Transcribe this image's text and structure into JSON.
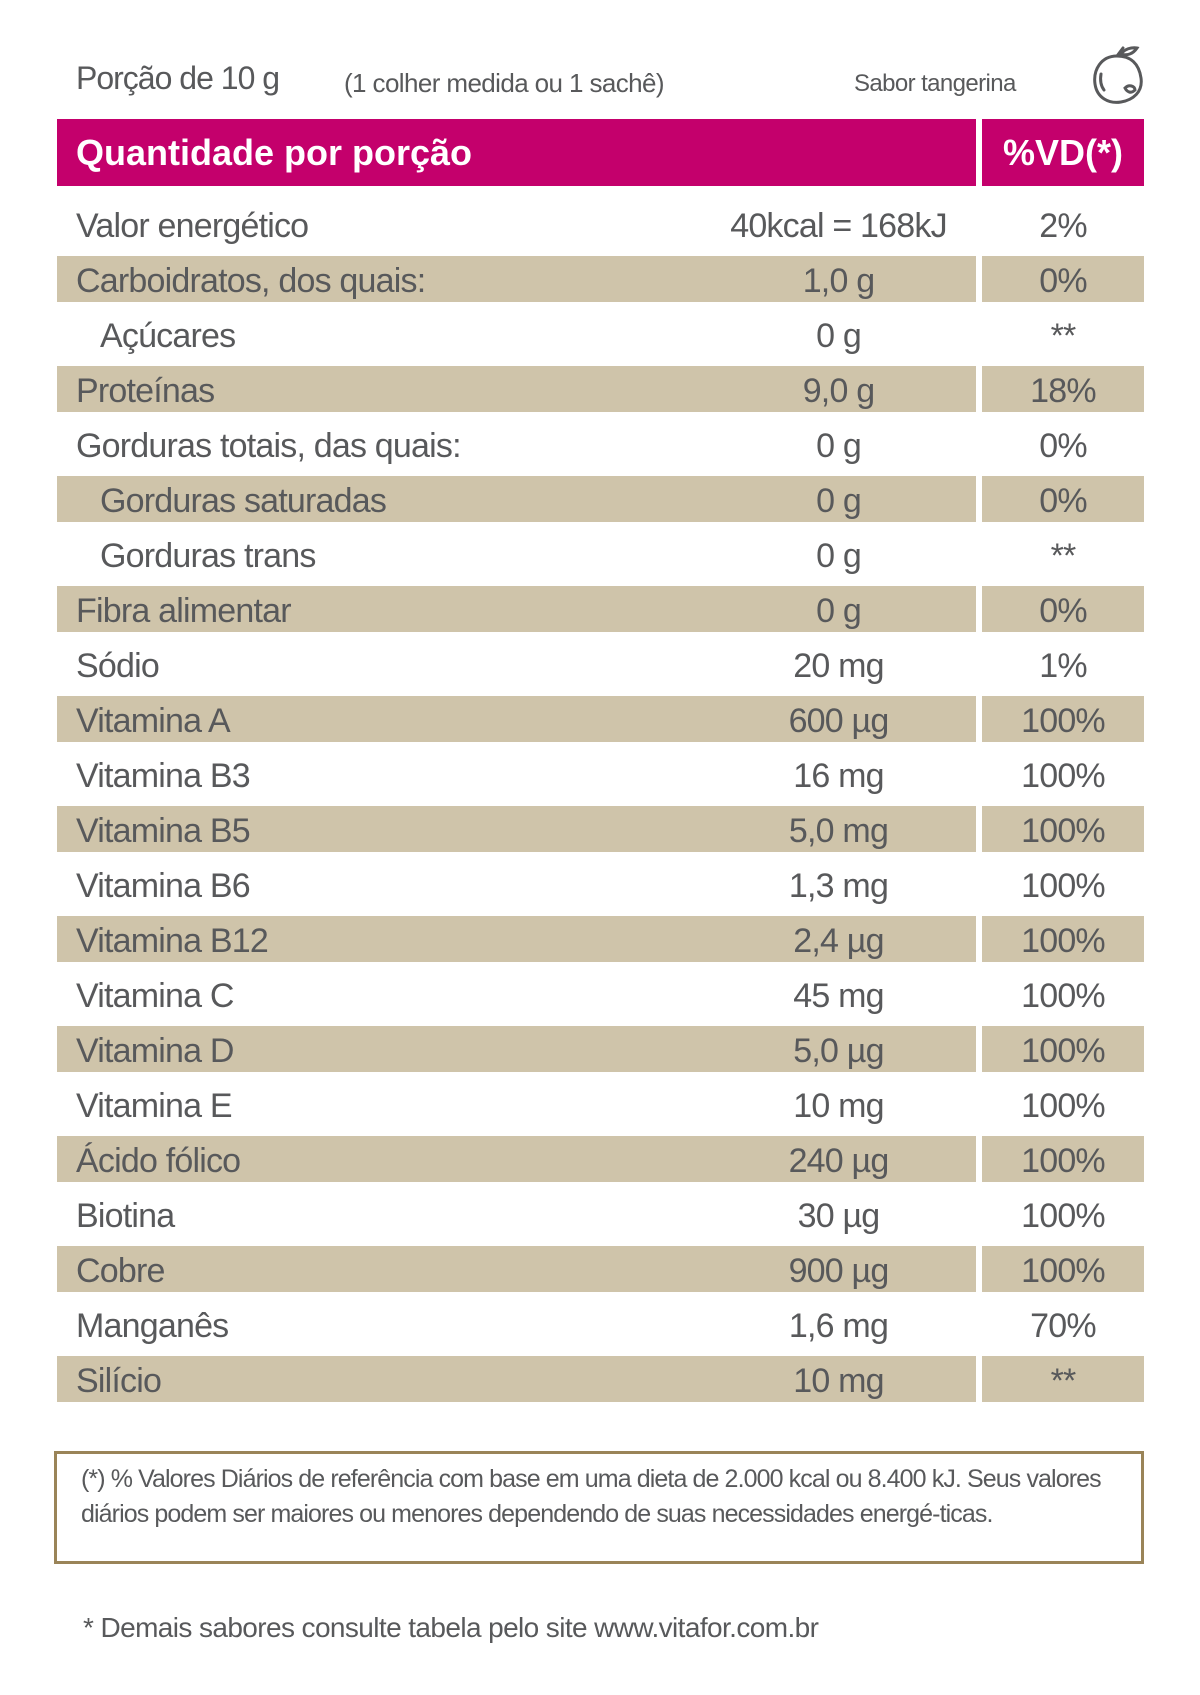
{
  "header": {
    "portion": "Porção de 10 g",
    "measure": "(1 colher medida ou 1 sachê)",
    "flavor": "Sabor tangerina",
    "flavor_icon": "tangerine-icon"
  },
  "table": {
    "col_quantity": "Quantidade por porção",
    "col_vd": "%VD(*)",
    "rows": [
      {
        "name": "Valor energético",
        "amount": "40kcal = 168kJ",
        "vd": "2%"
      },
      {
        "name": "Carboidratos, dos quais:",
        "amount": "1,0 g",
        "vd": "0%"
      },
      {
        "name": "Açúcares",
        "amount": "0 g",
        "vd": "**"
      },
      {
        "name": "Proteínas",
        "amount": "9,0 g",
        "vd": "18%"
      },
      {
        "name": "Gorduras totais, das quais:",
        "amount": "0 g",
        "vd": "0%"
      },
      {
        "name": "Gorduras saturadas",
        "amount": "0 g",
        "vd": "0%"
      },
      {
        "name": "Gorduras trans",
        "amount": "0 g",
        "vd": "**"
      },
      {
        "name": "Fibra alimentar",
        "amount": "0 g",
        "vd": "0%"
      },
      {
        "name": "Sódio",
        "amount": "20 mg",
        "vd": "1%"
      },
      {
        "name": "Vitamina A",
        "amount": "600 µg",
        "vd": "100%"
      },
      {
        "name": "Vitamina B3",
        "amount": "16 mg",
        "vd": "100%"
      },
      {
        "name": "Vitamina B5",
        "amount": "5,0 mg",
        "vd": "100%"
      },
      {
        "name": "Vitamina B6",
        "amount": "1,3 mg",
        "vd": "100%"
      },
      {
        "name": "Vitamina B12",
        "amount": "2,4 µg",
        "vd": "100%"
      },
      {
        "name": "Vitamina C",
        "amount": "45 mg",
        "vd": "100%"
      },
      {
        "name": "Vitamina D",
        "amount": "5,0 µg",
        "vd": "100%"
      },
      {
        "name": "Vitamina E",
        "amount": "10 mg",
        "vd": "100%"
      },
      {
        "name": "Ácido fólico",
        "amount": "240 µg",
        "vd": "100%"
      },
      {
        "name": "Biotina",
        "amount": "30 µg",
        "vd": "100%"
      },
      {
        "name": "Cobre",
        "amount": "900 µg",
        "vd": "100%"
      },
      {
        "name": "Manganês",
        "amount": "1,6 mg",
        "vd": "70%"
      },
      {
        "name": "Silício",
        "amount": "10 mg",
        "vd": "**"
      }
    ]
  },
  "note": "(*) % Valores Diários de referência com base em uma dieta de 2.000 kcal ou 8.400 kJ. Seus valores diários podem ser maiores ou menores dependendo de suas necessidades energé-ticas.",
  "footer": "* Demais sabores consulte tabela pelo site www.vitafor.com.br",
  "colors": {
    "header": "#c4006c",
    "stripe": "#cfc4aa",
    "note_border": "#9a8458",
    "text": "#58595b"
  }
}
